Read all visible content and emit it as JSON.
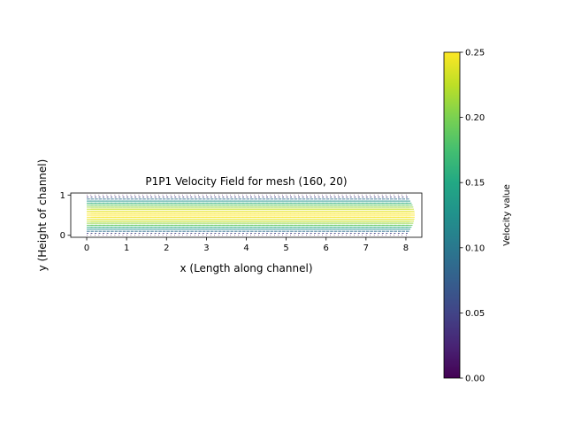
{
  "chart_data": {
    "type": "quiver",
    "title": "P1P1 Velocity Field for mesh (160, 20)",
    "xlabel": "x (Length along channel)",
    "ylabel": "y (Height of channel)",
    "xlim": [
      -0.4,
      8.4
    ],
    "ylim": [
      -0.05,
      1.05
    ],
    "xticks": [
      0,
      1,
      2,
      3,
      4,
      5,
      6,
      7,
      8
    ],
    "yticks": [
      0,
      1
    ],
    "grid": false,
    "mesh": [
      160,
      20
    ],
    "field": {
      "description_key": "parabolic",
      "x_range": [
        0,
        8
      ],
      "y_range": [
        0,
        1
      ],
      "u_max": 0.25
    },
    "colorbar": {
      "label": "Velocity value",
      "colormap": "viridis",
      "min": 0.0,
      "max": 0.25,
      "ticks": [
        0.0,
        0.05,
        0.1,
        0.15,
        0.2,
        0.25
      ],
      "tick_labels": [
        "0.00",
        "0.05",
        "0.10",
        "0.15",
        "0.20",
        "0.25"
      ]
    }
  }
}
